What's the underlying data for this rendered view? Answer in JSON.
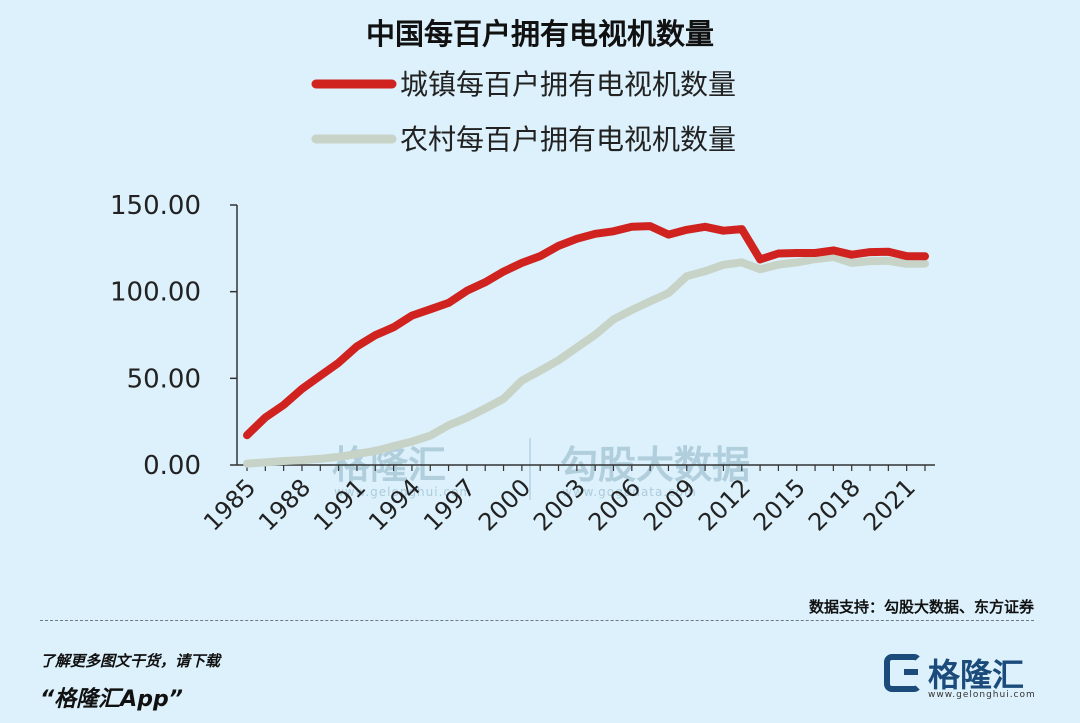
{
  "chart_data": {
    "type": "line",
    "title": "中国每百户拥有电视机数量",
    "x": [
      1985,
      1986,
      1987,
      1988,
      1989,
      1990,
      1991,
      1992,
      1993,
      1994,
      1995,
      1996,
      1997,
      1998,
      1999,
      2000,
      2001,
      2002,
      2003,
      2004,
      2005,
      2006,
      2007,
      2008,
      2009,
      2010,
      2011,
      2012,
      2013,
      2014,
      2015,
      2016,
      2017,
      2018,
      2019,
      2020,
      2021,
      2022
    ],
    "xtick_labels": [
      "1985",
      "1988",
      "1991",
      "1994",
      "1997",
      "2000",
      "2003",
      "2006",
      "2009",
      "2012",
      "2015",
      "2018",
      "2021"
    ],
    "yticks": [
      0,
      50,
      100,
      150
    ],
    "ytick_labels": [
      "0.00",
      "50.00",
      "100.00",
      "150.00"
    ],
    "ylim": [
      0,
      150
    ],
    "xlim": [
      1985,
      2022
    ],
    "legend": "top",
    "grid": false,
    "series": [
      {
        "name": "城镇每百户拥有电视机数量",
        "color": "#d0231f",
        "values": [
          17.2,
          27.4,
          34.6,
          43.9,
          51.5,
          59.0,
          68.4,
          74.9,
          79.5,
          86.2,
          89.8,
          93.5,
          100.5,
          105.4,
          111.6,
          116.6,
          120.5,
          126.4,
          130.5,
          133.4,
          134.8,
          137.4,
          137.8,
          132.9,
          135.7,
          137.4,
          135.2,
          136.1,
          118.6,
          122.0,
          122.3,
          122.3,
          123.8,
          121.3,
          122.8,
          123.0,
          120.5,
          120.4
        ]
      },
      {
        "name": "农村每百户拥有电视机数量",
        "color": "#c8d3c7",
        "values": [
          0.8,
          1.5,
          2.3,
          2.8,
          3.6,
          4.7,
          6.4,
          8.1,
          10.9,
          13.5,
          16.9,
          22.9,
          27.3,
          32.6,
          38.2,
          48.7,
          54.4,
          60.4,
          67.8,
          75.1,
          84.0,
          89.4,
          94.4,
          99.2,
          108.9,
          111.8,
          115.5,
          116.9,
          112.9,
          115.6,
          116.9,
          118.8,
          120.0,
          116.6,
          117.6,
          117.8,
          116.1,
          116.2
        ]
      }
    ]
  },
  "watermark": {
    "brand": "格隆汇",
    "brand_url": "www.gelonghui.com",
    "partner": "勾股大数据",
    "partner_url": "www.gogudata.com"
  },
  "source_text": "数据支持：勾股大数据、东方证券",
  "footer": {
    "line1": "了解更多图文干货，请下载",
    "line2": "“格隆汇App”",
    "brand": "格隆汇",
    "brand_url": "www.gelonghui.com"
  }
}
